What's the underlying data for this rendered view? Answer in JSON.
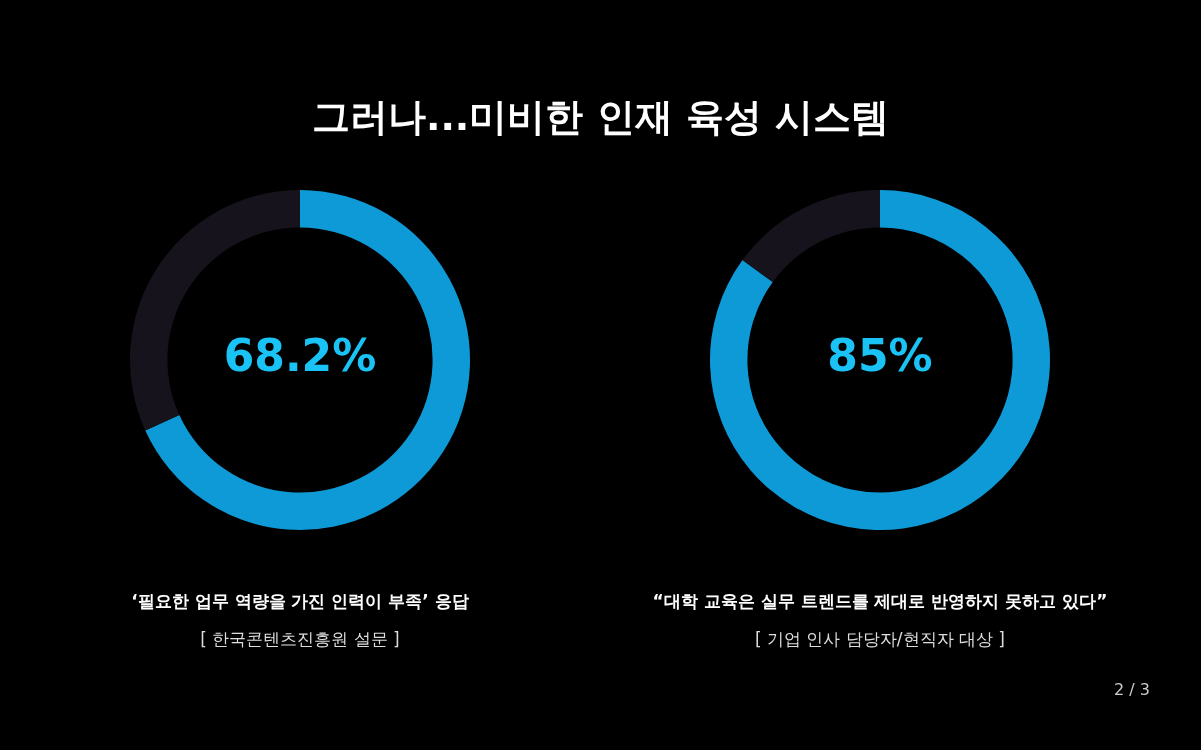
{
  "chart_data": [
    {
      "type": "donut",
      "title": "그러나...미비한 인재 육성 시스템",
      "categories": [
        null,
        null
      ],
      "values": [
        68.2,
        31.8
      ],
      "colors": [
        "#0e9ad6",
        "#16131c"
      ],
      "value_labels": [
        "68.2%",
        null
      ],
      "legend": false,
      "annotations": [
        "‘필요한 업무 역량을 가진 인력이 부족’ 응답",
        "[ 한국콘텐츠진흥원 설문 ]"
      ]
    },
    {
      "type": "donut",
      "categories": [
        null,
        null
      ],
      "values": [
        85,
        15
      ],
      "colors": [
        "#0e9ad6",
        "#16131c"
      ],
      "value_labels": [
        "85%",
        null
      ],
      "legend": false,
      "annotations": [
        "“대학 교육은 실무 트렌드를 제대로 반영하지 못하고 있다”",
        "[ 기업 인사 담당자/현직자 대상 ]",
        "2 / 3"
      ]
    }
  ]
}
